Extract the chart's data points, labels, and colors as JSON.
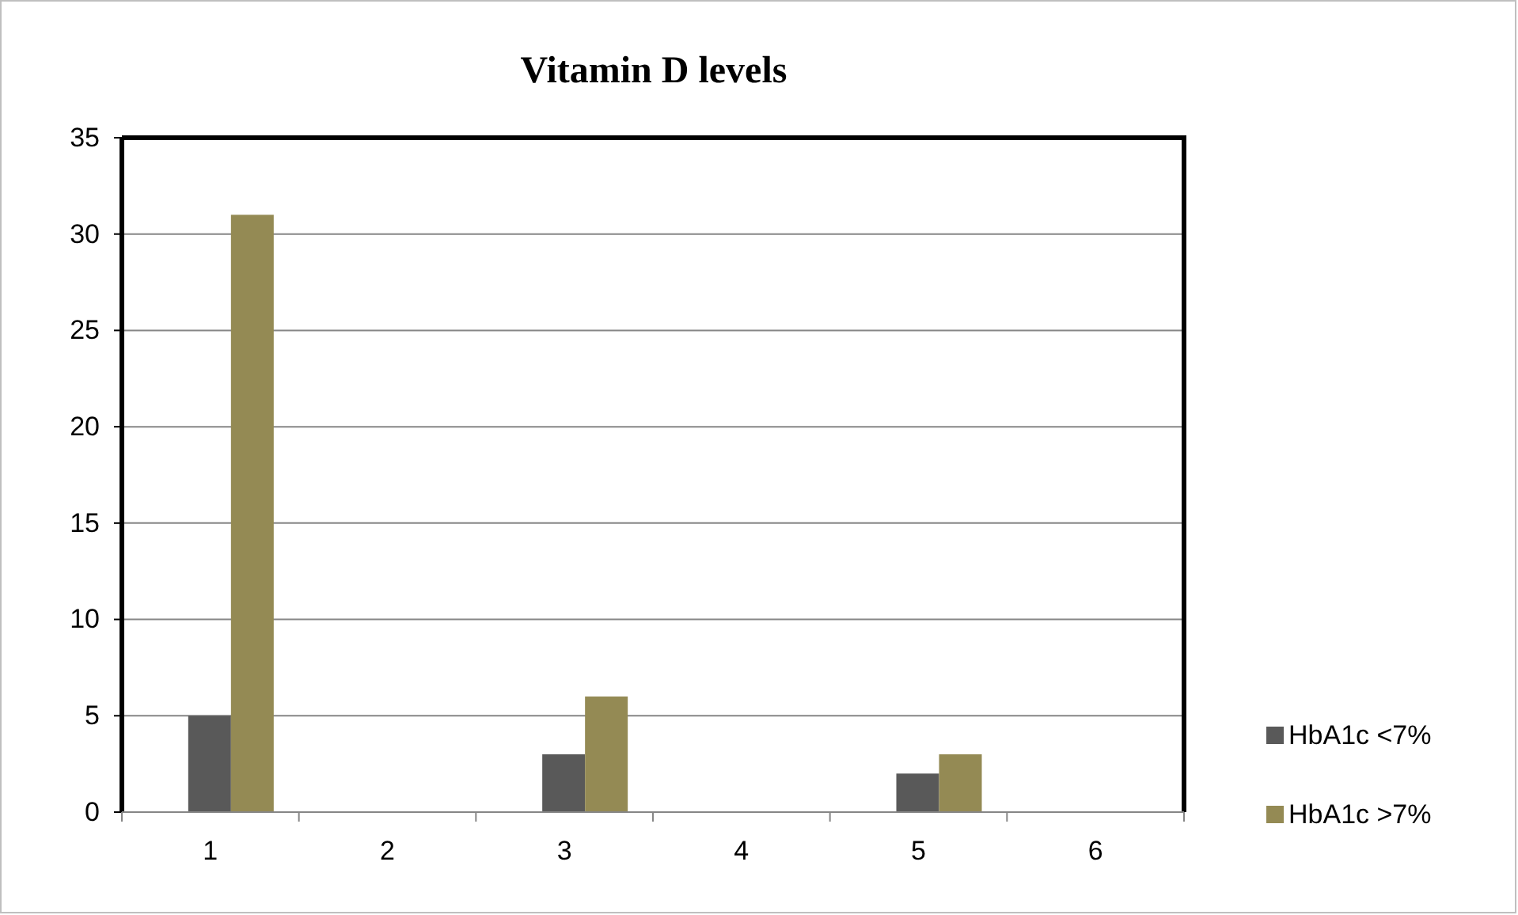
{
  "chart_data": {
    "type": "bar",
    "title": "Vitamin D levels",
    "categories": [
      "1",
      "2",
      "3",
      "4",
      "5",
      "6"
    ],
    "series": [
      {
        "name": "HbA1c <7%",
        "color": "#595959",
        "values": [
          5,
          0,
          3,
          0,
          2,
          0
        ]
      },
      {
        "name": "HbA1c >7%",
        "color": "#948a54",
        "values": [
          31,
          0,
          6,
          0,
          3,
          0
        ]
      }
    ],
    "ylim": [
      0,
      35
    ],
    "yticks": [
      0,
      5,
      10,
      15,
      20,
      25,
      30,
      35
    ],
    "grid": "y",
    "legend": "right"
  }
}
